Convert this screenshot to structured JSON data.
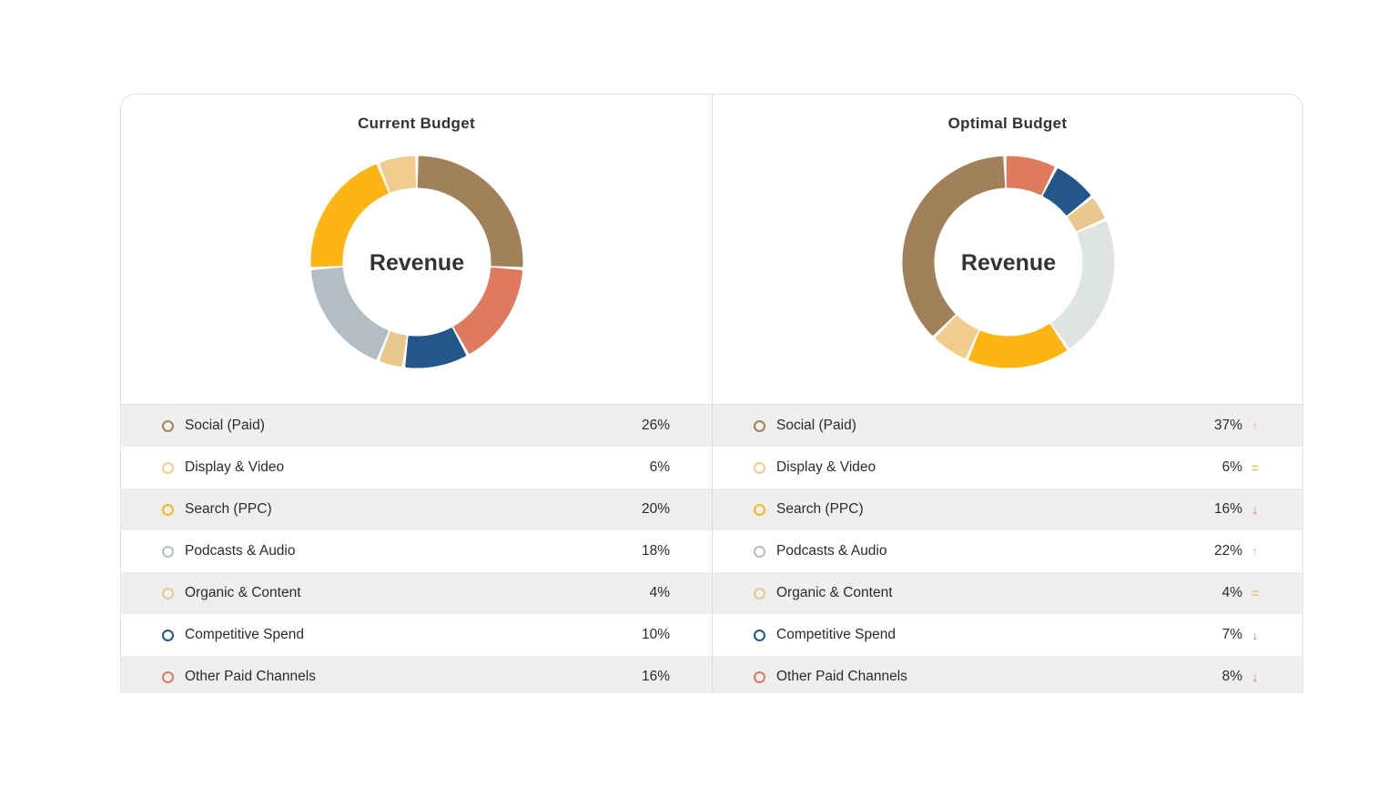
{
  "center_label": "Revenue",
  "chart_data": [
    {
      "type": "pie",
      "title": "Current Budget",
      "center_text": "Revenue",
      "series": [
        {
          "name": "Social (Paid)",
          "value": 26,
          "display": "26%",
          "color": "#a0815a"
        },
        {
          "name": "Other Paid Channels",
          "value": 16,
          "display": "16%",
          "color": "#e07a5f"
        },
        {
          "name": "Competitive Spend",
          "value": 10,
          "display": "10%",
          "color": "#235789"
        },
        {
          "name": "Organic & Content",
          "value": 4,
          "display": "4%",
          "color": "#e8c88c"
        },
        {
          "name": "Podcasts & Audio",
          "value": 18,
          "display": "18%",
          "color": "#b2bec3"
        },
        {
          "name": "Search (PPC)",
          "value": 20,
          "display": "20%",
          "color": "#fdb515"
        },
        {
          "name": "Display & Video",
          "value": 6,
          "display": "6%",
          "color": "#f2cc8f"
        }
      ],
      "legend": [
        {
          "name": "Social (Paid)",
          "display": "26%",
          "color": "#a0815a"
        },
        {
          "name": "Display & Video",
          "display": "6%",
          "color": "#f2cc8f"
        },
        {
          "name": "Search (PPC)",
          "display": "20%",
          "color": "#fdb515"
        },
        {
          "name": "Podcasts & Audio",
          "display": "18%",
          "color": "#b2bec3"
        },
        {
          "name": "Organic & Content",
          "display": "4%",
          "color": "#e8c88c"
        },
        {
          "name": "Competitive Spend",
          "display": "10%",
          "color": "#235789"
        },
        {
          "name": "Other Paid Channels",
          "display": "16%",
          "color": "#e07a5f"
        }
      ]
    },
    {
      "type": "pie",
      "title": "Optimal Budget",
      "center_text": "Revenue",
      "series": [
        {
          "name": "Other Paid Channels",
          "value": 8,
          "display": "8%",
          "color": "#e07a5f"
        },
        {
          "name": "Competitive Spend",
          "value": 7,
          "display": "7%",
          "color": "#235789"
        },
        {
          "name": "Organic & Content",
          "value": 4,
          "display": "4%",
          "color": "#e8c88c"
        },
        {
          "name": "Podcasts & Audio",
          "value": 22,
          "display": "22%",
          "color": "#dfe4e3"
        },
        {
          "name": "Search (PPC)",
          "value": 16,
          "display": "16%",
          "color": "#fdb515"
        },
        {
          "name": "Display & Video",
          "value": 6,
          "display": "6%",
          "color": "#f2cc8f"
        },
        {
          "name": "Social (Paid)",
          "value": 37,
          "display": "37%",
          "color": "#a0815a"
        }
      ],
      "legend": [
        {
          "name": "Social (Paid)",
          "display": "37%",
          "color": "#a0815a",
          "trend": "up"
        },
        {
          "name": "Display & Video",
          "display": "6%",
          "color": "#f2cc8f",
          "trend": "same"
        },
        {
          "name": "Search (PPC)",
          "display": "16%",
          "color": "#fdb515",
          "trend": "down"
        },
        {
          "name": "Podcasts & Audio",
          "display": "22%",
          "color": "#b2bec3",
          "trend": "up"
        },
        {
          "name": "Organic & Content",
          "display": "4%",
          "color": "#e8c88c",
          "trend": "same"
        },
        {
          "name": "Competitive Spend",
          "display": "7%",
          "color": "#235789",
          "trend": "down"
        },
        {
          "name": "Other Paid Channels",
          "display": "8%",
          "color": "#e07a5f",
          "trend": "down"
        }
      ]
    }
  ]
}
